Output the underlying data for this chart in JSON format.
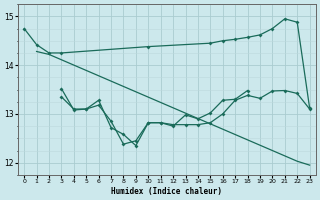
{
  "line1_x": [
    0,
    1,
    2,
    3,
    10,
    15,
    16,
    17,
    18,
    19,
    20,
    21,
    22,
    23
  ],
  "line1_y": [
    14.75,
    14.42,
    14.25,
    14.25,
    14.38,
    14.45,
    14.5,
    14.53,
    14.57,
    14.62,
    14.75,
    14.95,
    14.88,
    13.12
  ],
  "line2_x": [
    1,
    2,
    22,
    23
  ],
  "line2_y": [
    14.28,
    14.22,
    12.03,
    11.95
  ],
  "line3_x": [
    3,
    4,
    5,
    6,
    7,
    8,
    9,
    10,
    11,
    12,
    13,
    14,
    15,
    16,
    17,
    18,
    19,
    20,
    21,
    22,
    23
  ],
  "line3_y": [
    13.52,
    13.08,
    13.1,
    13.18,
    12.85,
    12.38,
    12.45,
    12.82,
    12.82,
    12.78,
    12.78,
    12.78,
    12.82,
    13.0,
    13.28,
    13.38,
    13.32,
    13.47,
    13.48,
    13.42,
    13.1
  ],
  "line4_x": [
    3,
    4,
    5,
    6,
    7,
    8,
    9,
    10,
    11,
    12,
    13,
    14,
    15,
    16,
    17,
    18
  ],
  "line4_y": [
    13.35,
    13.1,
    13.1,
    13.28,
    12.72,
    12.58,
    12.35,
    12.82,
    12.82,
    12.75,
    12.98,
    12.9,
    13.02,
    13.28,
    13.3,
    13.48
  ],
  "color": "#1a6b5a",
  "bg_color": "#cce8ec",
  "grid_major_color": "#aaccd0",
  "grid_minor_color": "#bcd8dc",
  "xlabel": "Humidex (Indice chaleur)",
  "ylim": [
    11.75,
    15.25
  ],
  "xlim": [
    -0.5,
    23.5
  ],
  "yticks": [
    12,
    13,
    14,
    15
  ],
  "xticks": [
    0,
    1,
    2,
    3,
    4,
    5,
    6,
    7,
    8,
    9,
    10,
    11,
    12,
    13,
    14,
    15,
    16,
    17,
    18,
    19,
    20,
    21,
    22,
    23
  ]
}
